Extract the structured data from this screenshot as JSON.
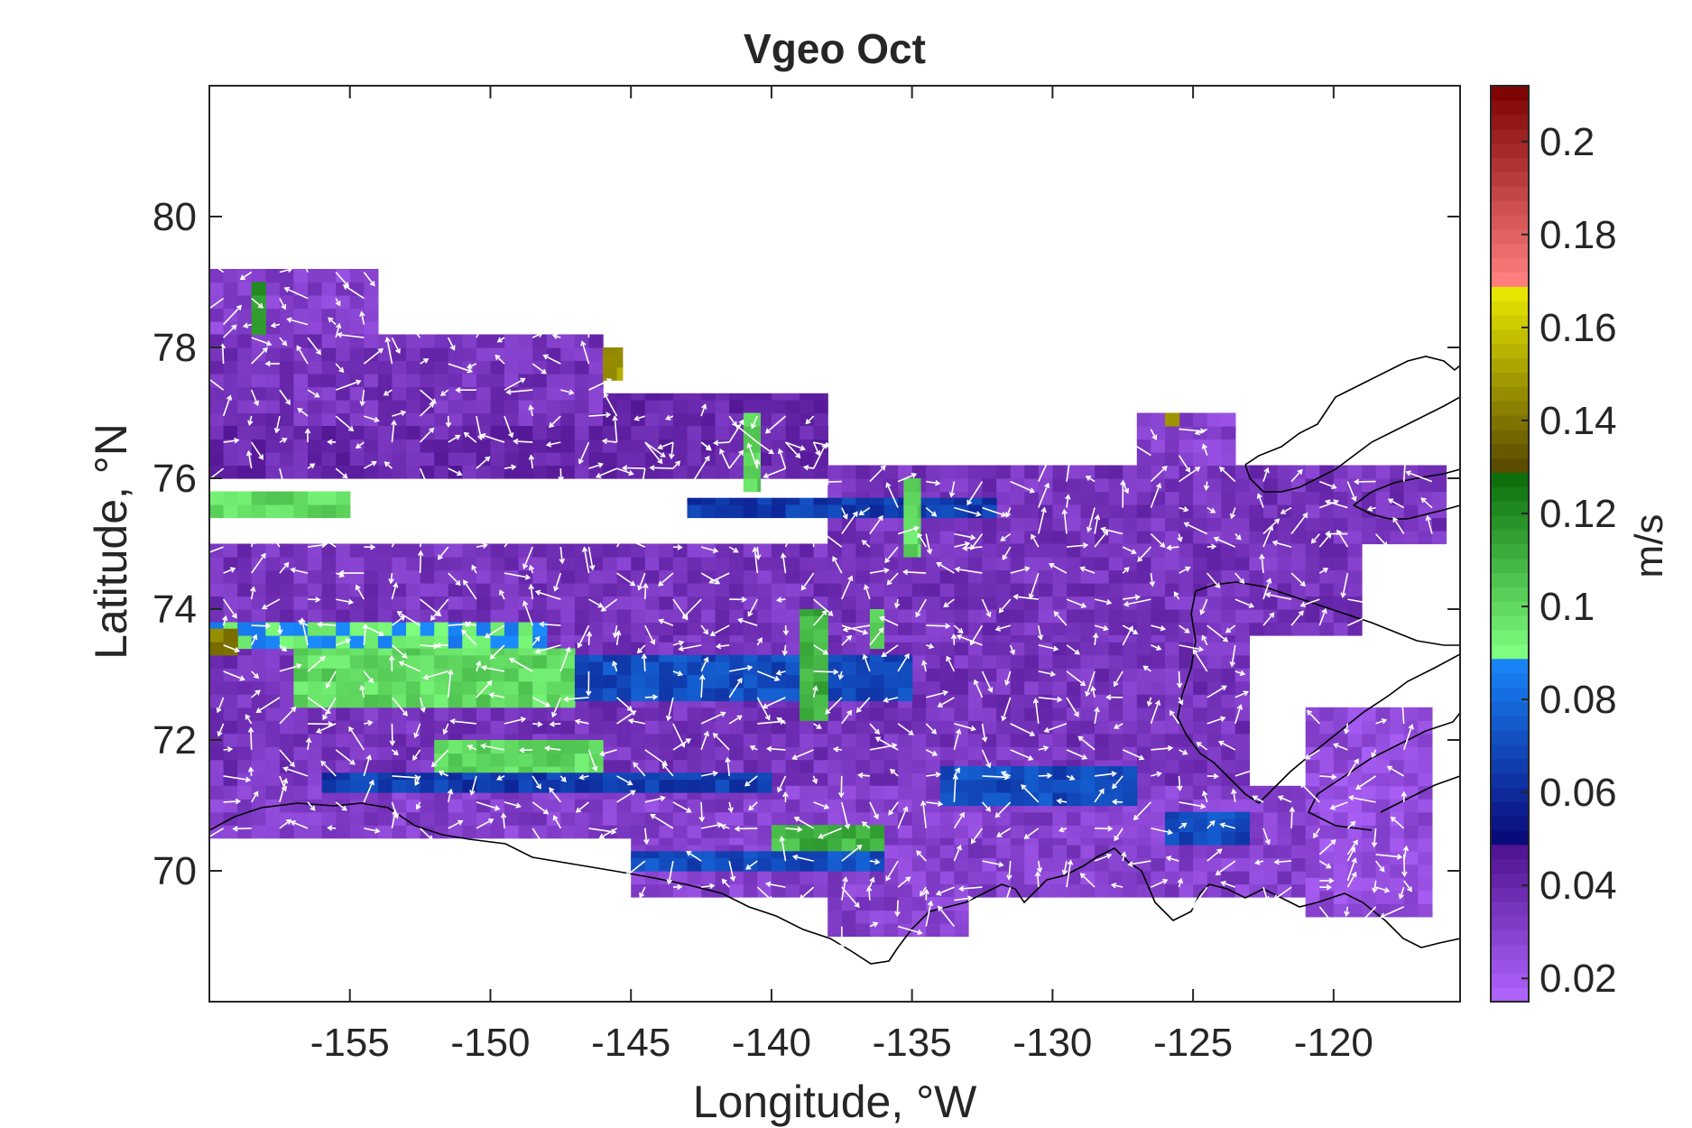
{
  "chart_data": {
    "type": "heatmap",
    "title": "Vgeo Oct",
    "xlabel": "Longitude, °W",
    "ylabel": "Latitude, °N",
    "xlim": [
      -160,
      -115.5
    ],
    "ylim": [
      68,
      82
    ],
    "x_ticks": [
      -155,
      -150,
      -145,
      -140,
      -135,
      -130,
      -125,
      -120
    ],
    "y_ticks": [
      70,
      72,
      74,
      76,
      78,
      80
    ],
    "colorbar": {
      "label": "m/s",
      "range": [
        0.015,
        0.212
      ],
      "ticks": [
        0.02,
        0.04,
        0.06,
        0.08,
        0.1,
        0.12,
        0.14,
        0.16,
        0.18,
        0.2
      ],
      "segments": [
        {
          "from": 0.015,
          "to": 0.05,
          "c0": "#b266ff",
          "c1": "#4a0e8a"
        },
        {
          "from": 0.05,
          "to": 0.09,
          "c0": "#0a0a7a",
          "c1": "#1a8cff"
        },
        {
          "from": 0.09,
          "to": 0.13,
          "c0": "#7fff7f",
          "c1": "#056605"
        },
        {
          "from": 0.13,
          "to": 0.17,
          "c0": "#5a4a00",
          "c1": "#f0f000"
        },
        {
          "from": 0.17,
          "to": 0.212,
          "c0": "#ff7f7f",
          "c1": "#7a0000"
        }
      ]
    },
    "regions": [
      {
        "lon": [
          -160,
          -154
        ],
        "lat": [
          78.2,
          79.2
        ],
        "v": 0.03
      },
      {
        "lon": [
          -160,
          -146
        ],
        "lat": [
          76.8,
          78.2
        ],
        "v": 0.035
      },
      {
        "lon": [
          -146,
          -138
        ],
        "lat": [
          76,
          77.3
        ],
        "v": 0.04
      },
      {
        "lon": [
          -160,
          -138
        ],
        "lat": [
          76,
          76.8
        ],
        "v": 0.04
      },
      {
        "lon": [
          -138,
          -116
        ],
        "lat": [
          75,
          76.2
        ],
        "v": 0.035
      },
      {
        "lon": [
          -160,
          -119
        ],
        "lat": [
          73.6,
          75.0
        ],
        "v": 0.035
      },
      {
        "lon": [
          -160,
          -123
        ],
        "lat": [
          71.3,
          73.6
        ],
        "v": 0.035
      },
      {
        "lon": [
          -160,
          -121
        ],
        "lat": [
          70.5,
          71.3
        ],
        "v": 0.03
      },
      {
        "lon": [
          -145,
          -117
        ],
        "lat": [
          69.6,
          70.5
        ],
        "v": 0.03
      },
      {
        "lon": [
          -138,
          -133
        ],
        "lat": [
          69.0,
          69.6
        ],
        "v": 0.03
      },
      {
        "lon": [
          -121,
          -116.5
        ],
        "lat": [
          69.3,
          72.5
        ],
        "v": 0.025
      },
      {
        "lon": [
          -127,
          -123.5
        ],
        "lat": [
          76.2,
          77.0
        ],
        "v": 0.03
      },
      {
        "lon": [
          -160,
          -155
        ],
        "lat": [
          75.4,
          75.8
        ],
        "v": 0.1
      },
      {
        "lon": [
          -160,
          -148
        ],
        "lat": [
          73.4,
          73.8
        ],
        "v": 0.09
      },
      {
        "lon": [
          -157,
          -147
        ],
        "lat": [
          72.5,
          73.4
        ],
        "v": 0.1
      },
      {
        "lon": [
          -147,
          -135
        ],
        "lat": [
          72.6,
          73.3
        ],
        "v": 0.07
      },
      {
        "lon": [
          -152,
          -146
        ],
        "lat": [
          71.4,
          72.0
        ],
        "v": 0.1
      },
      {
        "lon": [
          -140,
          -136
        ],
        "lat": [
          70.3,
          70.7
        ],
        "v": 0.11
      },
      {
        "lon": [
          -145,
          -136
        ],
        "lat": [
          70.0,
          70.3
        ],
        "v": 0.07
      },
      {
        "lon": [
          -134,
          -127
        ],
        "lat": [
          71.0,
          71.6
        ],
        "v": 0.07
      },
      {
        "lon": [
          -156,
          -140
        ],
        "lat": [
          71.2,
          71.5
        ],
        "v": 0.065
      },
      {
        "lon": [
          -143,
          -132
        ],
        "lat": [
          75.4,
          75.7
        ],
        "v": 0.065
      },
      {
        "lon": [
          -126,
          -123
        ],
        "lat": [
          70.4,
          70.9
        ],
        "v": 0.07
      },
      {
        "lon": [
          -139,
          -138
        ],
        "lat": [
          72.3,
          74.0
        ],
        "v": 0.11
      },
      {
        "lon": [
          -135.3,
          -134.7
        ],
        "lat": [
          74.8,
          76.0
        ],
        "v": 0.1
      },
      {
        "lon": [
          -146,
          -145.3
        ],
        "lat": [
          77.5,
          78.0
        ],
        "v": 0.15
      },
      {
        "lon": [
          -158.5,
          -158
        ],
        "lat": [
          78.2,
          79.0
        ],
        "v": 0.12
      },
      {
        "lon": [
          -160,
          -159
        ],
        "lat": [
          73.3,
          73.7
        ],
        "v": 0.14
      },
      {
        "lon": [
          -126,
          -125.5
        ],
        "lat": [
          76.8,
          77.0
        ],
        "v": 0.15
      },
      {
        "lon": [
          -141,
          -140.4
        ],
        "lat": [
          75.8,
          77.0
        ],
        "v": 0.1
      },
      {
        "lon": [
          -136.5,
          -136
        ],
        "lat": [
          73.4,
          74.0
        ],
        "v": 0.1
      }
    ]
  }
}
